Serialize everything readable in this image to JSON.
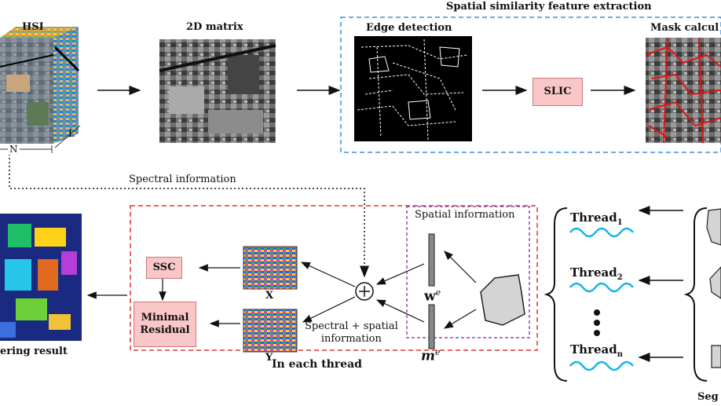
{
  "top": {
    "hsi_label": "HSI",
    "dim_n": "N",
    "dim_l": "L",
    "matrix_label": "2D matrix",
    "group_title": "Spatial similarity feature extraction",
    "edge_label": "Edge detection",
    "slic_label": "SLIC",
    "mask_label": "Mask calcul"
  },
  "middle": {
    "spectral_info": "Spectral information",
    "spatial_info": "Spatial information",
    "ssc_label": "SSC",
    "minimal_residual_1": "Minimal",
    "minimal_residual_2": "Residual",
    "x_label": "X",
    "y_label": "Y",
    "spectral_spatial_1": "Spectral + spatial",
    "spectral_spatial_2": "information",
    "we_label": "w",
    "we_sup": "e",
    "me_label": "m",
    "me_sup": "e",
    "thread_box_caption": "In each thread",
    "clustering_label": "ering result"
  },
  "threads": {
    "t1": "Thread",
    "t1_sub": "1",
    "t2": "Thread",
    "t2_sub": "2",
    "tn": "Thread",
    "tn_sub": "n",
    "seg_label": "Seg"
  }
}
